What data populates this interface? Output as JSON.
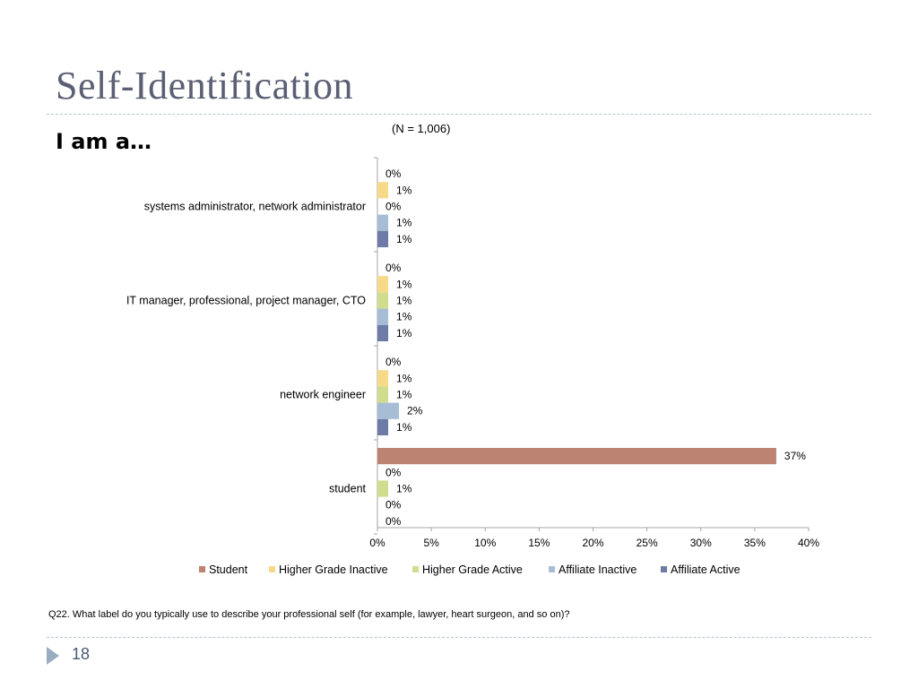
{
  "slide": {
    "title": "Self-Identification",
    "subtitle": "I am a…",
    "question": "Q22. What label do you typically use to describe your professional self (for example, lawyer, heart surgeon, and so on)?",
    "page_number": "18"
  },
  "colors": {
    "Student": "#bc8372",
    "Higher Grade Inactive": "#f7da87",
    "Higher Grade Active": "#d2dc8e",
    "Affiliate Inactive": "#a7bdd6",
    "Affiliate Active": "#6d7ba6"
  },
  "chart_data": {
    "type": "bar",
    "orientation": "horizontal",
    "annotation": "(N = 1,006)",
    "categories": [
      "systems administrator, network administrator",
      "IT manager, professional, project manager, CTO",
      "network engineer",
      "student"
    ],
    "series": [
      {
        "name": "Student",
        "values": [
          0,
          0,
          0,
          37
        ]
      },
      {
        "name": "Higher Grade Inactive",
        "values": [
          1,
          1,
          1,
          0
        ]
      },
      {
        "name": "Higher Grade Active",
        "values": [
          0,
          1,
          1,
          1
        ]
      },
      {
        "name": "Affiliate Inactive",
        "values": [
          1,
          1,
          2,
          0
        ]
      },
      {
        "name": "Affiliate Active",
        "values": [
          1,
          1,
          1,
          0
        ]
      }
    ],
    "data_label_suffix": "%",
    "xlim": [
      0,
      40
    ],
    "xticks": [
      "0%",
      "5%",
      "10%",
      "15%",
      "20%",
      "25%",
      "30%",
      "35%",
      "40%"
    ],
    "legend_position": "bottom",
    "grid": false
  }
}
